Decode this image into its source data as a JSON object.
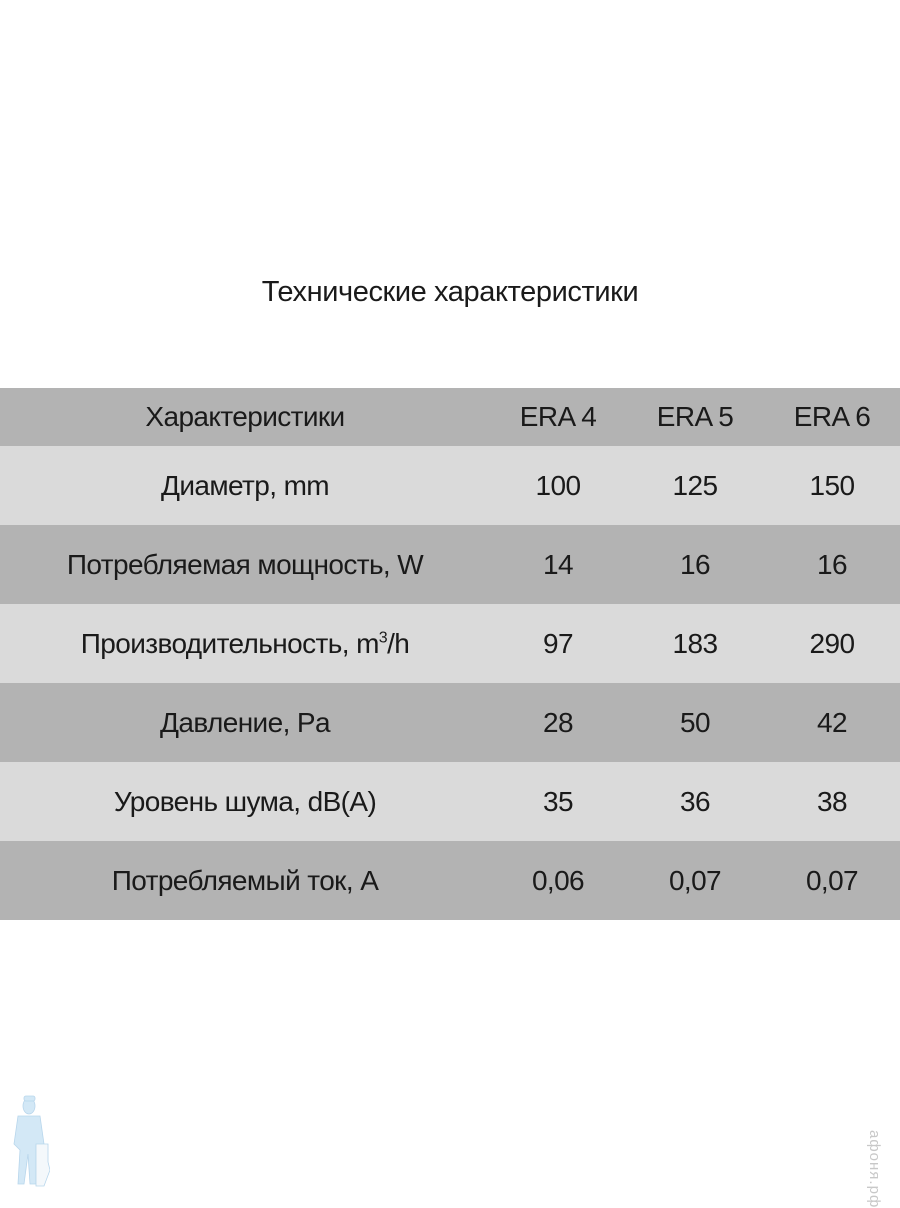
{
  "title": "Технические характеристики",
  "table": {
    "headers": [
      "Характеристики",
      "ERA 4",
      "ERA 5",
      "ERA 6"
    ],
    "rows": [
      {
        "label": "Диаметр, mm",
        "values": [
          "100",
          "125",
          "150"
        ]
      },
      {
        "label": "Потребляемая мощность, W",
        "values": [
          "14",
          "16",
          "16"
        ]
      },
      {
        "label": "Производительность, m",
        "label_sup": "3",
        "label_suffix": "/h",
        "values": [
          "97",
          "183",
          "290"
        ]
      },
      {
        "label": "Давление, Pa",
        "values": [
          "28",
          "50",
          "42"
        ]
      },
      {
        "label": "Уровень шума, dB(A)",
        "values": [
          "35",
          "36",
          "38"
        ]
      },
      {
        "label": "Потребляемый ток, A",
        "values": [
          "0,06",
          "0,07",
          "0,07"
        ]
      }
    ]
  },
  "colors": {
    "row_dark": "#b3b3b3",
    "row_light": "#dadada",
    "logo": "#cfe6f5"
  },
  "watermark": "афоня.рф"
}
